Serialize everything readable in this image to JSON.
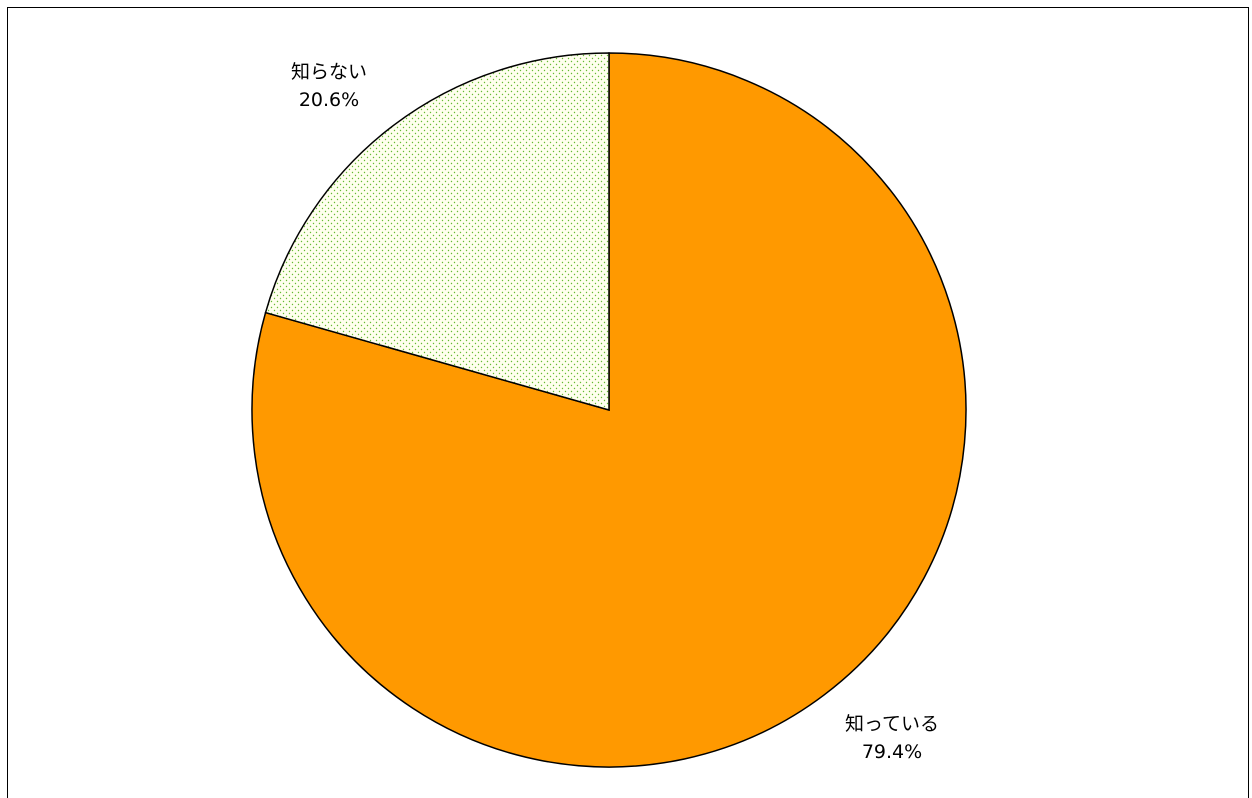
{
  "chart_data": {
    "type": "pie",
    "slices": [
      {
        "label": "知っている",
        "value": 79.4,
        "value_label": "79.4%",
        "color": "#FF9900",
        "pattern": "solid"
      },
      {
        "label": "知らない",
        "value": 20.6,
        "value_label": "20.6%",
        "color": "#FFFFEE",
        "pattern": "dots",
        "dot_color": "#66BB33"
      }
    ],
    "start_angle": "12 o'clock",
    "direction": "clockwise",
    "legend": "none"
  }
}
